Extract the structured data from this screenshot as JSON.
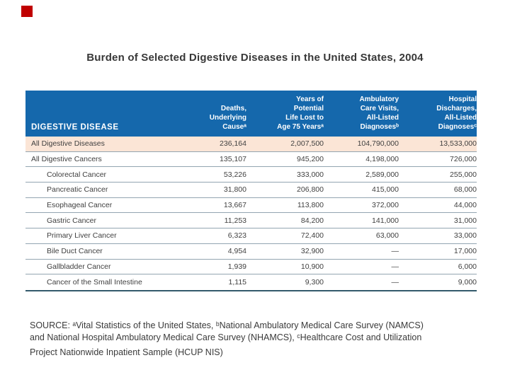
{
  "title": "Burden of Selected Digestive Diseases in the United States, 2004",
  "table": {
    "columns": [
      {
        "key": "disease",
        "lines": [
          "DIGESTIVE DISEASE"
        ]
      },
      {
        "key": "deaths",
        "lines": [
          "Deaths,",
          "Underlying",
          "Causeᵃ"
        ]
      },
      {
        "key": "ypll",
        "lines": [
          "Years of",
          "Potential",
          "Life Lost to",
          "Age 75 Yearsᵃ"
        ]
      },
      {
        "key": "ambulatory",
        "lines": [
          "Ambulatory",
          "Care Visits,",
          "All-Listed",
          "Diagnosesᵇ"
        ]
      },
      {
        "key": "hospital",
        "lines": [
          "Hospital",
          "Discharges,",
          "All-Listed",
          "Diagnosesᶜ"
        ]
      }
    ],
    "rows": [
      {
        "disease": "All Digestive Diseases",
        "indent": false,
        "highlight": true,
        "values": [
          "236,164",
          "2,007,500",
          "104,790,000",
          "13,533,000"
        ]
      },
      {
        "disease": "All Digestive Cancers",
        "indent": false,
        "highlight": false,
        "values": [
          "135,107",
          "945,200",
          "4,198,000",
          "726,000"
        ]
      },
      {
        "disease": "Colorectal Cancer",
        "indent": true,
        "highlight": false,
        "values": [
          "53,226",
          "333,000",
          "2,589,000",
          "255,000"
        ]
      },
      {
        "disease": "Pancreatic Cancer",
        "indent": true,
        "highlight": false,
        "values": [
          "31,800",
          "206,800",
          "415,000",
          "68,000"
        ]
      },
      {
        "disease": "Esophageal Cancer",
        "indent": true,
        "highlight": false,
        "values": [
          "13,667",
          "113,800",
          "372,000",
          "44,000"
        ]
      },
      {
        "disease": "Gastric Cancer",
        "indent": true,
        "highlight": false,
        "values": [
          "11,253",
          "84,200",
          "141,000",
          "31,000"
        ]
      },
      {
        "disease": "Primary Liver Cancer",
        "indent": true,
        "highlight": false,
        "values": [
          "6,323",
          "72,400",
          "63,000",
          "33,000"
        ]
      },
      {
        "disease": "Bile Duct Cancer",
        "indent": true,
        "highlight": false,
        "values": [
          "4,954",
          "32,900",
          "—",
          "17,000"
        ]
      },
      {
        "disease": "Gallbladder Cancer",
        "indent": true,
        "highlight": false,
        "values": [
          "1,939",
          "10,900",
          "—",
          "6,000"
        ]
      },
      {
        "disease": "Cancer of the Small Intestine",
        "indent": true,
        "highlight": false,
        "values": [
          "1,115",
          "9,300",
          "—",
          "9,000"
        ]
      }
    ]
  },
  "source_lines": [
    "SOURCE: ᵃVital Statistics of the United States, ᵇNational Ambulatory Medical Care Survey (NAMCS)",
    "and National Hospital Ambulatory Medical Care Survey (NHAMCS), ᶜHealthcare Cost and Utilization",
    "Project Nationwide Inpatient Sample (HCUP NIS)"
  ],
  "colors": {
    "accent": "#C00000",
    "header_bg": "#1568AC",
    "header_text": "#FFFFFF",
    "highlight_bg": "#FBE5D6",
    "row_line": "#93A5B1",
    "table_bottom_line": "#33596B",
    "body_text": "#404040",
    "title_text": "#383838",
    "source_text": "#3A3A3A"
  }
}
